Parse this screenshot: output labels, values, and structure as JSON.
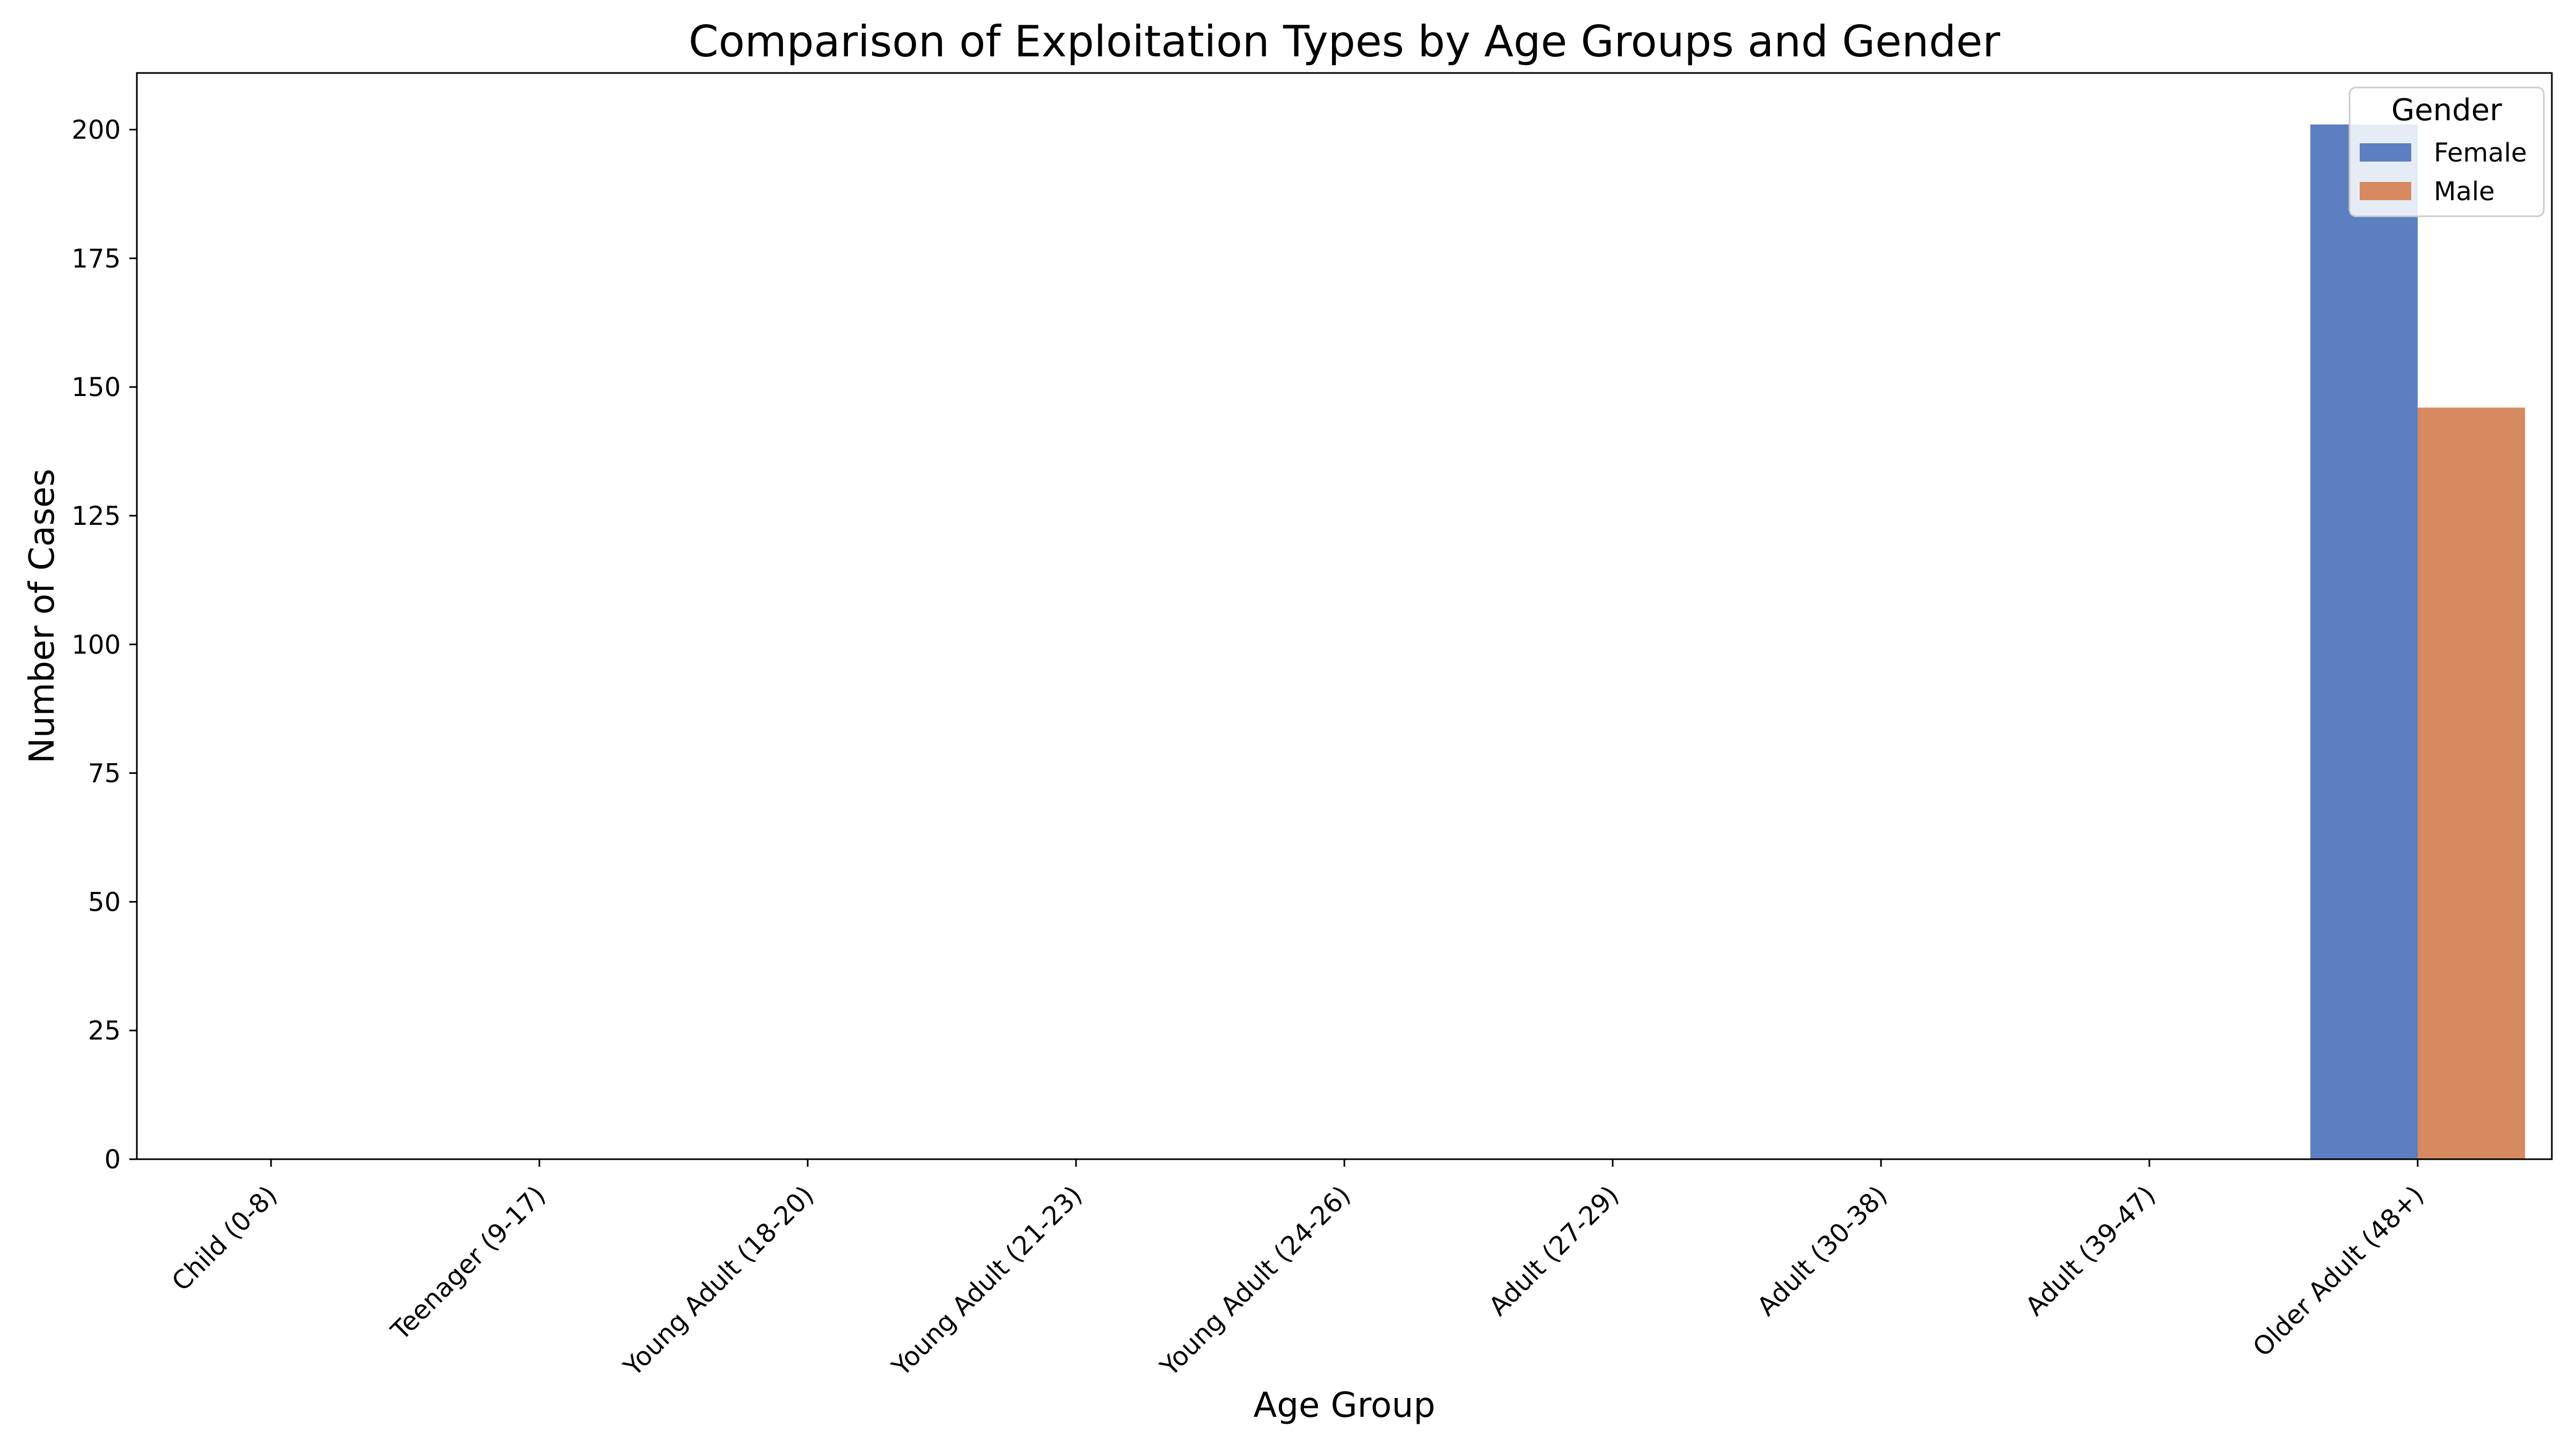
{
  "chart_data": {
    "type": "bar",
    "title": "Comparison of Exploitation Types by Age Groups and Gender",
    "xlabel": "Age Group",
    "ylabel": "Number of Cases",
    "categories": [
      "Child (0-8)",
      "Teenager (9-17)",
      "Young Adult (18-20)",
      "Young Adult (21-23)",
      "Young Adult (24-26)",
      "Adult (27-29)",
      "Adult (30-38)",
      "Adult (39-47)",
      "Older Adult (48+)"
    ],
    "series": [
      {
        "name": "Female",
        "color": "#5b7fc1",
        "values": [
          0,
          0,
          0,
          0,
          0,
          0,
          0,
          0,
          201
        ]
      },
      {
        "name": "Male",
        "color": "#d78a5f",
        "values": [
          0,
          0,
          0,
          0,
          0,
          0,
          0,
          0,
          146
        ]
      }
    ],
    "ylim": [
      0,
      211
    ],
    "yticks": [
      0,
      25,
      50,
      75,
      100,
      125,
      150,
      175,
      200
    ],
    "legend": {
      "title": "Gender",
      "placement": "top-right"
    },
    "grid": false
  }
}
